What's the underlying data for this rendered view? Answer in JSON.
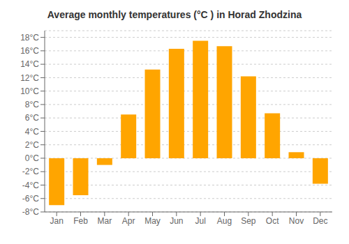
{
  "chart_data": {
    "type": "bar",
    "title": "Average monthly temperatures (°C ) in Horad Zhodzina",
    "categories": [
      "Jan",
      "Feb",
      "Mar",
      "Apr",
      "May",
      "Jun",
      "Jul",
      "Aug",
      "Sep",
      "Oct",
      "Nov",
      "Dec"
    ],
    "values": [
      -7.0,
      -5.5,
      -1.0,
      6.5,
      13.2,
      16.3,
      17.5,
      16.7,
      12.2,
      6.7,
      0.9,
      -3.8
    ],
    "color": "#FFA500",
    "ylim": [
      -8,
      19
    ],
    "yticks": [
      {
        "value": -8,
        "label": "-8°C"
      },
      {
        "value": -6,
        "label": "-6°C"
      },
      {
        "value": -4,
        "label": "-4°C"
      },
      {
        "value": -2,
        "label": "-2°C"
      },
      {
        "value": 0,
        "label": "0°C"
      },
      {
        "value": 2,
        "label": "2°C"
      },
      {
        "value": 4,
        "label": "4°C"
      },
      {
        "value": 6,
        "label": "6°C"
      },
      {
        "value": 8,
        "label": "8°C"
      },
      {
        "value": 10,
        "label": "10°C"
      },
      {
        "value": 12,
        "label": "12°C"
      },
      {
        "value": 14,
        "label": "14°C"
      },
      {
        "value": 16,
        "label": "16°C"
      },
      {
        "value": 18,
        "label": "18°C"
      }
    ],
    "grid": true
  }
}
